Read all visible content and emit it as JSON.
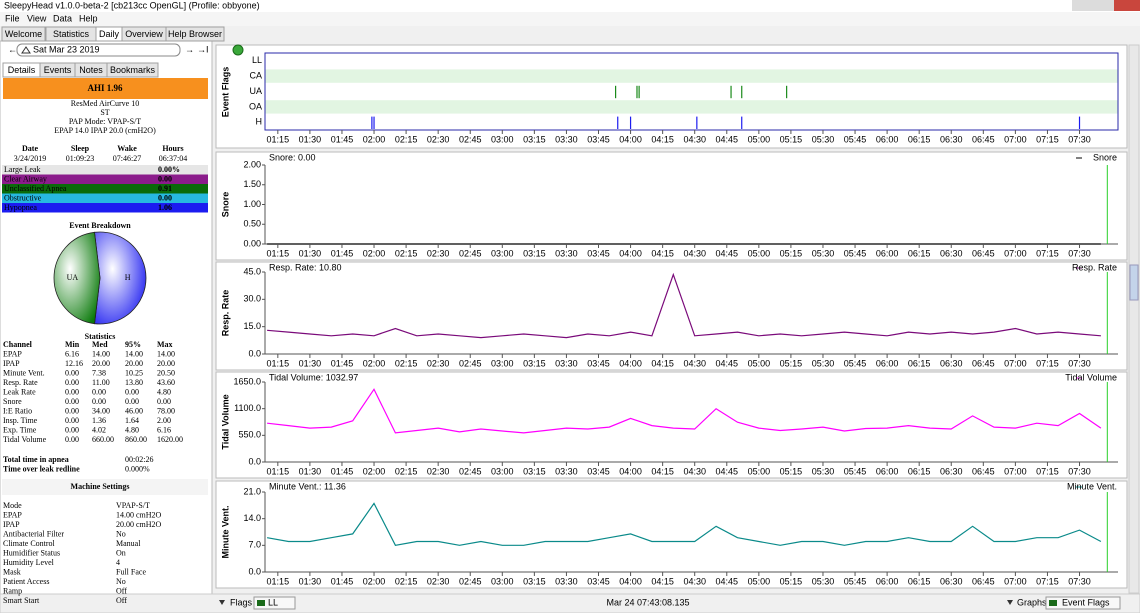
{
  "window_title": "SleepyHead v1.0.0-beta-2 [cb213cc OpenGL] (Profile: obbyone)",
  "menu": [
    "File",
    "View",
    "Data",
    "Help"
  ],
  "tabs": [
    "Welcome",
    "Statistics",
    "Daily",
    "Overview",
    "Help Browser"
  ],
  "date": "Sat Mar 23 2019",
  "side_tabs": [
    "Details",
    "Events",
    "Notes",
    "Bookmarks"
  ],
  "ahi": "AHI 1.96",
  "device": [
    "ResMed AirCurve 10",
    "ST",
    "PAP Mode: VPAP-S/T",
    "EPAP 14.0 IPAP 20.0 (cmH2O)"
  ],
  "session": {
    "header": [
      "Date",
      "Sleep",
      "Wake",
      "Hours"
    ],
    "row": [
      "3/24/2019",
      "01:09:23",
      "07:46:27",
      "06:37:04"
    ]
  },
  "events": [
    {
      "name": "Large Leak",
      "value": "0.00%",
      "color": "#e6e6e6"
    },
    {
      "name": "Clear Airway",
      "value": "0.00",
      "color": "#8b1c8b"
    },
    {
      "name": "Unclassified Apnea",
      "value": "0.91",
      "color": "#0a6a0a"
    },
    {
      "name": "Obstructive",
      "value": "0.00",
      "color": "#27b8e0"
    },
    {
      "name": "Hypopnea",
      "value": "1.06",
      "color": "#1c1cf0"
    }
  ],
  "breakdown": {
    "title": "Event Breakdown",
    "slices": [
      {
        "label": "H",
        "value": 1.06,
        "color": "#1c1cf0"
      },
      {
        "label": "UA",
        "value": 0.91,
        "color": "#0a7a0a"
      }
    ]
  },
  "statistics": {
    "title": "Statistics",
    "header": [
      "Channel",
      "Min",
      "Med",
      "95%",
      "Max"
    ],
    "rows": [
      [
        "EPAP",
        "6.16",
        "14.00",
        "14.00",
        "14.00"
      ],
      [
        "IPAP",
        "12.16",
        "20.00",
        "20.00",
        "20.00"
      ],
      [
        "Minute Vent.",
        "0.00",
        "7.38",
        "10.25",
        "20.50"
      ],
      [
        "Resp. Rate",
        "0.00",
        "11.00",
        "13.80",
        "43.60"
      ],
      [
        "Leak Rate",
        "0.00",
        "0.00",
        "0.00",
        "4.80"
      ],
      [
        "Snore",
        "0.00",
        "0.00",
        "0.00",
        "0.00"
      ],
      [
        "I:E Ratio",
        "0.00",
        "34.00",
        "46.00",
        "78.00"
      ],
      [
        "Insp. Time",
        "0.00",
        "1.36",
        "1.64",
        "2.00"
      ],
      [
        "Exp. Time",
        "0.00",
        "4.02",
        "4.80",
        "6.16"
      ],
      [
        "Tidal Volume",
        "0.00",
        "660.00",
        "860.00",
        "1620.00"
      ]
    ]
  },
  "totals": [
    [
      "Total time in apnea",
      "00:02:26"
    ],
    [
      "Time over leak redline",
      "0.000%"
    ]
  ],
  "machine_settings": {
    "title": "Machine Settings",
    "rows": [
      [
        "Mode",
        "VPAP-S/T"
      ],
      [
        "EPAP",
        "14.00 cmH2O"
      ],
      [
        "IPAP",
        "20.00 cmH2O"
      ],
      [
        "Antibacterial Filter",
        "No"
      ],
      [
        "Climate Control",
        "Manual"
      ],
      [
        "Humidifier Status",
        "On"
      ],
      [
        "Humidity Level",
        "4"
      ],
      [
        "Mask",
        "Full Face"
      ],
      [
        "Patient Access",
        "No"
      ],
      [
        "Ramp",
        "Off"
      ],
      [
        "Smart Start",
        "Off"
      ]
    ]
  },
  "time_axis": {
    "xlim": [
      69,
      468
    ],
    "xticks": [
      {
        "value": 75,
        "label": "01:15"
      },
      {
        "value": 90,
        "label": "01:30"
      },
      {
        "value": 105,
        "label": "01:45"
      },
      {
        "value": 120,
        "label": "02:00"
      },
      {
        "value": 135,
        "label": "02:15"
      },
      {
        "value": 150,
        "label": "02:30"
      },
      {
        "value": 165,
        "label": "02:45"
      },
      {
        "value": 180,
        "label": "03:00"
      },
      {
        "value": 195,
        "label": "03:15"
      },
      {
        "value": 210,
        "label": "03:30"
      },
      {
        "value": 225,
        "label": "03:45"
      },
      {
        "value": 240,
        "label": "04:00"
      },
      {
        "value": 255,
        "label": "04:15"
      },
      {
        "value": 270,
        "label": "04:30"
      },
      {
        "value": 285,
        "label": "04:45"
      },
      {
        "value": 300,
        "label": "05:00"
      },
      {
        "value": 315,
        "label": "05:15"
      },
      {
        "value": 330,
        "label": "05:30"
      },
      {
        "value": 345,
        "label": "05:45"
      },
      {
        "value": 360,
        "label": "06:00"
      },
      {
        "value": 375,
        "label": "06:15"
      },
      {
        "value": 390,
        "label": "06:30"
      },
      {
        "value": 405,
        "label": "06:45"
      },
      {
        "value": 420,
        "label": "07:00"
      },
      {
        "value": 435,
        "label": "07:15"
      },
      {
        "value": 450,
        "label": "07:30"
      }
    ],
    "samples": [
      70,
      80,
      90,
      100,
      110,
      120,
      130,
      140,
      150,
      160,
      170,
      180,
      190,
      200,
      210,
      220,
      230,
      240,
      250,
      260,
      270,
      280,
      290,
      300,
      310,
      320,
      330,
      340,
      350,
      360,
      370,
      380,
      390,
      400,
      410,
      420,
      430,
      440,
      450,
      460
    ]
  },
  "cursor": 463,
  "event_flags": {
    "title": "Event Flags",
    "rows": [
      "LL",
      "CA",
      "UA",
      "OA",
      "H"
    ],
    "colors": [
      "#888888",
      "#8b1c8b",
      "#1a8a1a",
      "#27b8e0",
      "#1c1cf0"
    ],
    "events": [
      [],
      [],
      [
        233,
        243,
        244,
        287,
        292,
        313
      ],
      [],
      [
        119,
        120,
        234,
        240,
        271,
        292,
        450
      ]
    ]
  },
  "graphs": [
    {
      "title": "Snore",
      "readout": "Snore: 0.00",
      "color": "#000000",
      "ylim": [
        0,
        2
      ],
      "yticks": [
        {
          "value": 0,
          "label": "0.00"
        },
        {
          "value": 0.5,
          "label": "0.50"
        },
        {
          "value": 1,
          "label": "1.00"
        },
        {
          "value": 1.5,
          "label": "1.50"
        },
        {
          "value": 2,
          "label": "2.00"
        }
      ],
      "values": [
        0,
        0,
        0,
        0,
        0,
        0,
        0,
        0,
        0,
        0,
        0,
        0,
        0,
        0,
        0,
        0,
        0,
        0,
        0,
        0,
        0,
        0,
        0,
        0,
        0,
        0,
        0,
        0,
        0,
        0,
        0,
        0,
        0,
        0,
        0,
        0,
        0,
        0,
        0,
        0
      ]
    },
    {
      "title": "Resp. Rate",
      "readout": "Resp. Rate: 10.80",
      "color": "#7a0a7a",
      "ylim": [
        0,
        45
      ],
      "yticks": [
        {
          "value": 0,
          "label": "0.0"
        },
        {
          "value": 15,
          "label": "15.0"
        },
        {
          "value": 30,
          "label": "30.0"
        },
        {
          "value": 45,
          "label": "45.0"
        }
      ],
      "values": [
        13,
        12,
        11,
        10,
        11,
        10,
        14,
        10,
        11,
        10,
        9,
        10,
        11,
        10,
        9,
        11,
        10,
        12,
        10,
        43.6,
        10,
        11,
        12,
        10,
        11,
        10,
        11,
        12,
        11,
        10,
        12,
        11,
        12,
        11,
        12,
        14,
        11,
        12,
        11,
        10
      ]
    },
    {
      "title": "Tidal Volume",
      "readout": "Tidal Volume: 1032.97",
      "color": "#ff00ff",
      "ylim": [
        0,
        1650
      ],
      "yticks": [
        {
          "value": 0,
          "label": "0.0"
        },
        {
          "value": 550,
          "label": "550.0"
        },
        {
          "value": 1100,
          "label": "1100.0"
        },
        {
          "value": 1650,
          "label": "1650.0"
        }
      ],
      "values": [
        800,
        750,
        700,
        720,
        850,
        1500,
        600,
        650,
        700,
        620,
        680,
        640,
        600,
        650,
        700,
        680,
        720,
        900,
        750,
        700,
        680,
        1100,
        820,
        700,
        650,
        680,
        720,
        640,
        690,
        700,
        750,
        700,
        680,
        950,
        720,
        700,
        800,
        750,
        1000,
        700
      ]
    },
    {
      "title": "Minute Vent.",
      "readout": "Minute Vent.: 11.36",
      "color": "#0a8a8a",
      "ylim": [
        0,
        21
      ],
      "yticks": [
        {
          "value": 0,
          "label": "0.0"
        },
        {
          "value": 7,
          "label": "7.0"
        },
        {
          "value": 14,
          "label": "14.0"
        },
        {
          "value": 21,
          "label": "21.0"
        }
      ],
      "values": [
        9,
        8,
        8,
        9,
        10,
        18,
        7,
        8,
        8,
        7,
        8,
        7,
        7,
        8,
        8,
        8,
        9,
        10,
        8,
        8,
        8,
        12,
        9,
        8,
        7,
        8,
        8,
        7,
        8,
        8,
        9,
        8,
        8,
        12,
        8,
        8,
        9,
        9,
        11,
        8
      ]
    }
  ],
  "bottom_bar": {
    "flags": "Flags",
    "flag_select": "LL",
    "time": "Mar 24 07:43:08.135",
    "graphs": "Graphs",
    "graph_select": "Event Flags"
  }
}
